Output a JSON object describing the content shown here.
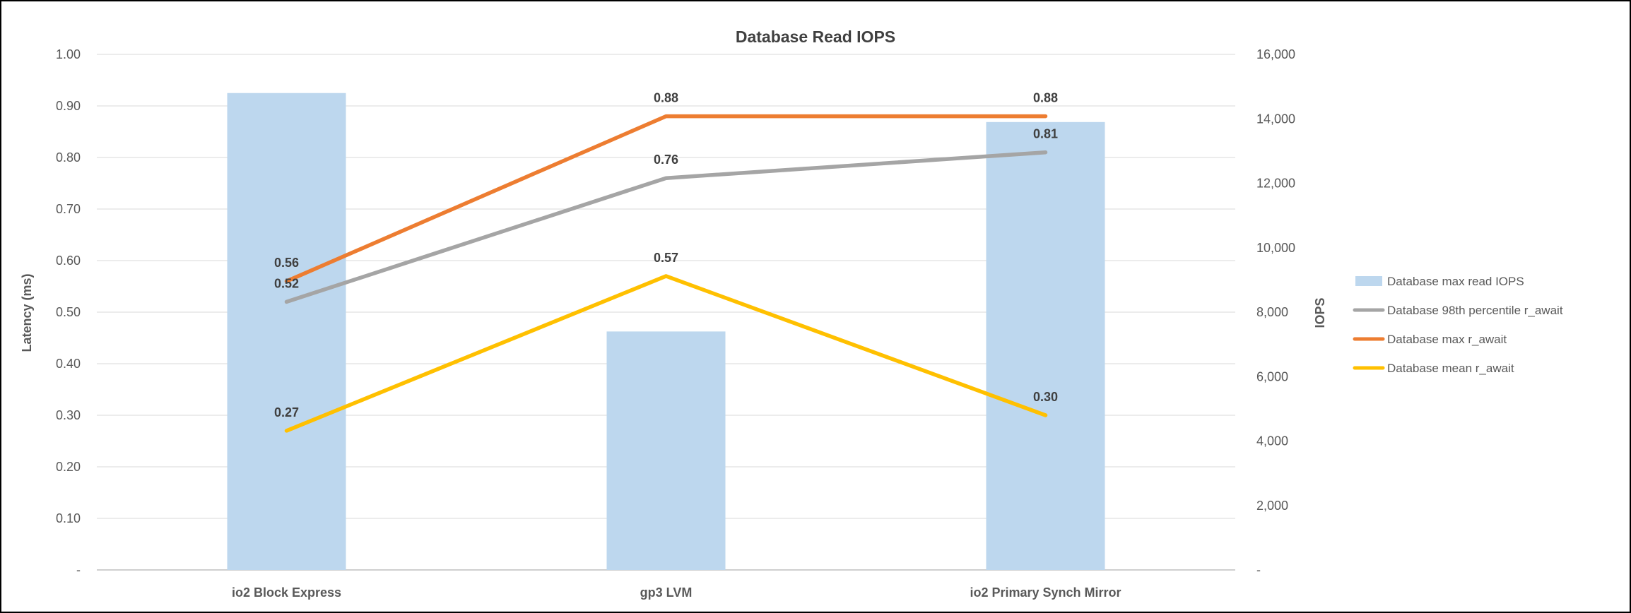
{
  "chart_data": {
    "type": "combo-bar-line",
    "title": "Database Read IOPS",
    "categories": [
      "io2 Block Express",
      "gp3 LVM",
      "io2 Primary Synch Mirror"
    ],
    "bar_series": {
      "name": "Database max read IOPS",
      "color": "#BDD7EE",
      "axis": "right",
      "values": [
        14800,
        7400,
        13900
      ]
    },
    "line_series": [
      {
        "name": "Database 98th percentile r_await",
        "color": "#A5A5A5",
        "axis": "left",
        "values": [
          0.52,
          0.76,
          0.81
        ],
        "labels": [
          "0.52",
          "0.76",
          "0.81"
        ]
      },
      {
        "name": "Database max r_await",
        "color": "#ED7D31",
        "axis": "left",
        "values": [
          0.56,
          0.88,
          0.88
        ],
        "labels": [
          "0.56",
          "0.88",
          "0.88"
        ]
      },
      {
        "name": "Database mean r_await",
        "color": "#FFC000",
        "axis": "left",
        "values": [
          0.27,
          0.57,
          0.3
        ],
        "labels": [
          "0.27",
          "0.57",
          "0.30"
        ]
      }
    ],
    "left_axis": {
      "title": "Latency (ms)",
      "min": 0,
      "max": 1.0,
      "ticks": [
        "1.00",
        "0.90",
        "0.80",
        "0.70",
        "0.60",
        "0.50",
        "0.40",
        "0.30",
        "0.20",
        "0.10",
        "-"
      ]
    },
    "right_axis": {
      "title": "IOPS",
      "min": 0,
      "max": 16000,
      "ticks": [
        "16,000",
        "14,000",
        "12,000",
        "10,000",
        "8,000",
        "6,000",
        "4,000",
        "2,000",
        "-"
      ]
    },
    "legend": {
      "position": "right",
      "entries": [
        {
          "label": "Database max read IOPS",
          "color": "#BDD7EE",
          "swatch": "bar"
        },
        {
          "label": "Database 98th percentile r_await",
          "color": "#A5A5A5",
          "swatch": "line"
        },
        {
          "label": "Database max r_await",
          "color": "#ED7D31",
          "swatch": "line"
        },
        {
          "label": "Database mean r_await",
          "color": "#FFC000",
          "swatch": "line"
        }
      ]
    },
    "grid": true,
    "gridline_color": "#D9D9D9",
    "baseline_color": "#BFBFBF",
    "background_color": "#FFFFFF",
    "border_color": "#000000"
  }
}
